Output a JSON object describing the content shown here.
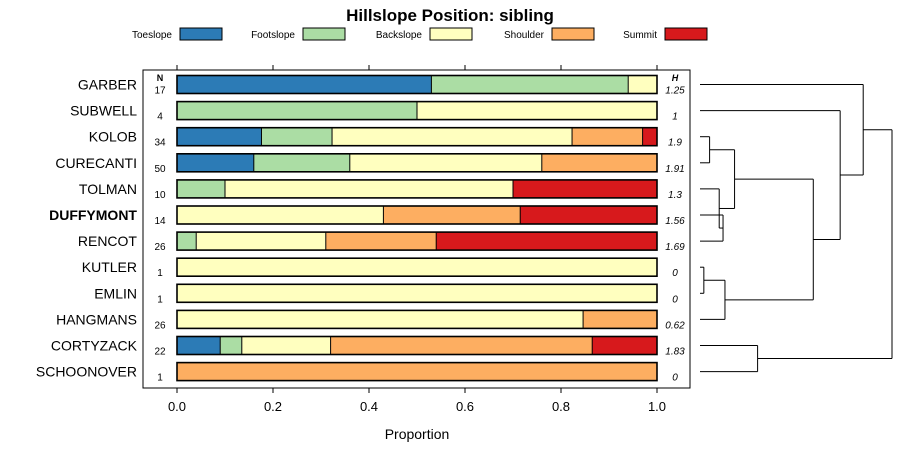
{
  "chart_data": {
    "type": "bar",
    "subtype": "stacked-horizontal-proportion",
    "title": "Hillslope Position: sibling",
    "xlabel": "Proportion",
    "ylabel": "",
    "xlim": [
      -0.03,
      1.07
    ],
    "x_ticks": [
      0.0,
      0.2,
      0.4,
      0.6,
      0.8,
      1.0
    ],
    "x_tick_labels": [
      "0.0",
      "0.2",
      "0.4",
      "0.6",
      "0.8",
      "1.0"
    ],
    "n_header": "N",
    "h_header": "H",
    "highlight_category": "DUFFYMONT",
    "categories": [
      "GARBER",
      "SUBWELL",
      "KOLOB",
      "CURECANTI",
      "TOLMAN",
      "DUFFYMONT",
      "RENCOT",
      "KUTLER",
      "EMLIN",
      "HANGMANS",
      "CORTYZACK",
      "SCHOONOVER"
    ],
    "n": [
      "17",
      "4",
      "34",
      "50",
      "10",
      "14",
      "26",
      "1",
      "1",
      "26",
      "22",
      "1"
    ],
    "h": [
      "1.25",
      "1",
      "1.9",
      "1.91",
      "1.3",
      "1.56",
      "1.69",
      "0",
      "0",
      "0.62",
      "1.83",
      "0"
    ],
    "series": [
      {
        "name": "Toeslope",
        "color": "#2C7BB6",
        "values": [
          0.53,
          0.0,
          0.176,
          0.16,
          0.0,
          0.0,
          0.0,
          0.0,
          0.0,
          0.0,
          0.09,
          0.0
        ]
      },
      {
        "name": "Footslope",
        "color": "#ABDDA4",
        "values": [
          0.41,
          0.5,
          0.147,
          0.2,
          0.1,
          0.0,
          0.04,
          0.0,
          0.0,
          0.0,
          0.045,
          0.0
        ]
      },
      {
        "name": "Backslope",
        "color": "#FFFFBF",
        "values": [
          0.06,
          0.5,
          0.5,
          0.4,
          0.6,
          0.43,
          0.27,
          1.0,
          1.0,
          0.846,
          0.185,
          0.0
        ]
      },
      {
        "name": "Shoulder",
        "color": "#FDAE61",
        "values": [
          0.0,
          0.0,
          0.147,
          0.24,
          0.0,
          0.285,
          0.23,
          0.0,
          0.0,
          0.154,
          0.545,
          1.0
        ]
      },
      {
        "name": "Summit",
        "color": "#D7191C",
        "values": [
          0.0,
          0.0,
          0.03,
          0.0,
          0.3,
          0.285,
          0.46,
          0.0,
          0.0,
          0.0,
          0.135,
          0.0
        ]
      }
    ],
    "dendrogram": {
      "leaves": [
        "GARBER",
        "SUBWELL",
        "KOLOB",
        "CURECANTI",
        "TOLMAN",
        "DUFFYMONT",
        "RENCOT",
        "KUTLER",
        "EMLIN",
        "HANGMANS",
        "CORTYZACK",
        "SCHOONOVER"
      ],
      "merges": [
        {
          "a": "KUTLER",
          "b": "EMLIN",
          "height": 0.02,
          "id": "c1"
        },
        {
          "a": "KOLOB",
          "b": "CURECANTI",
          "height": 0.05,
          "id": "c2"
        },
        {
          "a": "DUFFYMONT",
          "b": "RENCOT",
          "height": 0.12,
          "id": "c3"
        },
        {
          "a": "TOLMAN",
          "b": "c3",
          "height": 0.1,
          "id": "c4"
        },
        {
          "a": "c2",
          "b": "c4",
          "height": 0.18,
          "id": "c5"
        },
        {
          "a": "c1",
          "b": "HANGMANS",
          "height": 0.13,
          "id": "c6"
        },
        {
          "a": "CORTYZACK",
          "b": "SCHOONOVER",
          "height": 0.3,
          "id": "c7"
        },
        {
          "a": "c5",
          "b": "c6",
          "height": 0.59,
          "id": "c8"
        },
        {
          "a": "SUBWELL",
          "b": "c8",
          "height": 0.73,
          "id": "c9"
        },
        {
          "a": "GARBER",
          "b": "c9",
          "height": 0.85,
          "id": "c10"
        },
        {
          "a": "c10",
          "b": "c7",
          "height": 1.0,
          "id": "c11"
        }
      ]
    }
  }
}
